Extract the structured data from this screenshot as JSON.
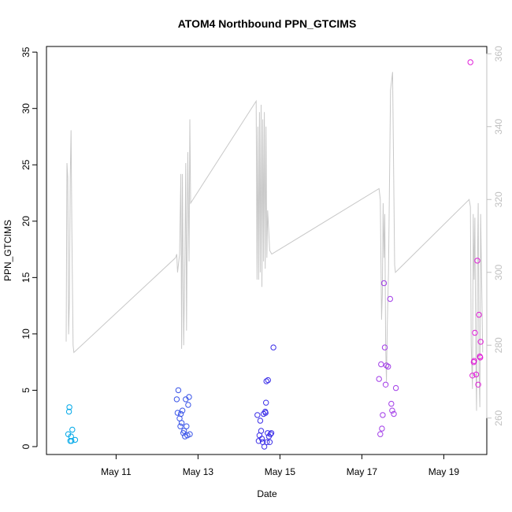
{
  "chart_data": {
    "type": "scatter",
    "title": "ATOM4 Northbound PPN_GTCIMS",
    "xlabel": "Date",
    "ylabel": "PPN_GTCIMS",
    "x_ticks": [
      {
        "value": 11,
        "label": "May 11"
      },
      {
        "value": 13,
        "label": "May 13"
      },
      {
        "value": 15,
        "label": "May 15"
      },
      {
        "value": 17,
        "label": "May 17"
      },
      {
        "value": 19,
        "label": "May 19"
      }
    ],
    "xlim": [
      9.3,
      20.05
    ],
    "ylim": [
      -0.7,
      35.5
    ],
    "y_ticks": [
      0,
      5,
      10,
      15,
      20,
      25,
      30,
      35
    ],
    "y2lim": [
      250.0,
      362.0
    ],
    "y2_ticks": [
      260,
      280,
      300,
      320,
      340,
      360
    ],
    "colors": {
      "axis": "#000000",
      "secondary_axis": "#c0c0c0",
      "secondary_line": "#c8c8c8"
    },
    "series": [
      {
        "color": "#00a8e8",
        "points": [
          [
            9.83,
            1.1
          ],
          [
            9.85,
            3.1
          ],
          [
            9.86,
            3.5
          ],
          [
            9.88,
            0.5
          ],
          [
            9.9,
            0.9
          ],
          [
            9.91,
            0.5
          ],
          [
            9.93,
            1.5
          ],
          [
            10.0,
            0.6
          ]
        ]
      },
      {
        "color": "#3a55e8",
        "points": [
          [
            12.48,
            4.2
          ],
          [
            12.5,
            3.0
          ],
          [
            12.52,
            5.0
          ],
          [
            12.55,
            2.5
          ],
          [
            12.57,
            1.8
          ],
          [
            12.58,
            2.9
          ],
          [
            12.6,
            2.1
          ],
          [
            12.62,
            3.2
          ],
          [
            12.64,
            1.2
          ],
          [
            12.66,
            1.4
          ],
          [
            12.68,
            0.9
          ],
          [
            12.7,
            4.2
          ],
          [
            12.72,
            1.8
          ],
          [
            12.74,
            1.0
          ],
          [
            12.76,
            3.7
          ],
          [
            12.78,
            4.4
          ],
          [
            12.8,
            1.1
          ]
        ]
      },
      {
        "color": "#3b2ee8",
        "points": [
          [
            14.45,
            2.8
          ],
          [
            14.48,
            0.5
          ],
          [
            14.5,
            1.0
          ],
          [
            14.52,
            2.3
          ],
          [
            14.54,
            1.4
          ],
          [
            14.56,
            0.7
          ],
          [
            14.58,
            0.4
          ],
          [
            14.6,
            2.9
          ],
          [
            14.62,
            0.0
          ],
          [
            14.64,
            3.1
          ],
          [
            14.65,
            3.0
          ],
          [
            14.66,
            3.9
          ],
          [
            14.67,
            5.8
          ],
          [
            14.68,
            0.4
          ],
          [
            14.7,
            1.2
          ],
          [
            14.71,
            5.9
          ],
          [
            14.73,
            0.9
          ],
          [
            14.75,
            0.4
          ],
          [
            14.77,
            1.1
          ],
          [
            14.79,
            1.2
          ],
          [
            14.84,
            8.8
          ]
        ]
      },
      {
        "color": "#a23de8",
        "points": [
          [
            17.42,
            6.0
          ],
          [
            17.45,
            1.1
          ],
          [
            17.47,
            7.3
          ],
          [
            17.49,
            1.6
          ],
          [
            17.51,
            2.8
          ],
          [
            17.54,
            14.5
          ],
          [
            17.56,
            8.8
          ],
          [
            17.58,
            5.5
          ],
          [
            17.6,
            7.2
          ],
          [
            17.64,
            7.1
          ],
          [
            17.69,
            13.1
          ],
          [
            17.72,
            3.8
          ],
          [
            17.74,
            3.2
          ],
          [
            17.78,
            2.9
          ],
          [
            17.83,
            5.2
          ]
        ]
      },
      {
        "color": "#e020d8",
        "points": [
          [
            19.65,
            34.1
          ],
          [
            19.7,
            6.3
          ],
          [
            19.73,
            7.5
          ],
          [
            19.74,
            7.6
          ],
          [
            19.76,
            10.1
          ],
          [
            19.79,
            6.4
          ],
          [
            19.82,
            16.5
          ],
          [
            19.84,
            5.5
          ],
          [
            19.86,
            11.7
          ],
          [
            19.88,
            8.0
          ],
          [
            19.89,
            7.9
          ],
          [
            19.9,
            9.3
          ]
        ]
      }
    ],
    "secondary_line": {
      "axis": "right",
      "points": [
        [
          9.78,
          281
        ],
        [
          9.8,
          330
        ],
        [
          9.82,
          326
        ],
        [
          9.84,
          283
        ],
        [
          9.86,
          292
        ],
        [
          9.88,
          326
        ],
        [
          9.9,
          339
        ],
        [
          9.92,
          312
        ],
        [
          9.95,
          280
        ],
        [
          9.97,
          278
        ],
        [
          12.45,
          304
        ],
        [
          12.48,
          305
        ],
        [
          12.5,
          300
        ],
        [
          12.55,
          305
        ],
        [
          12.58,
          327
        ],
        [
          12.6,
          279
        ],
        [
          12.62,
          327
        ],
        [
          12.65,
          280
        ],
        [
          12.68,
          305
        ],
        [
          12.7,
          330
        ],
        [
          12.72,
          284
        ],
        [
          12.75,
          333
        ],
        [
          12.78,
          303
        ],
        [
          12.8,
          342
        ],
        [
          12.82,
          319
        ],
        [
          14.42,
          347
        ],
        [
          14.44,
          298
        ],
        [
          14.46,
          340
        ],
        [
          14.48,
          298
        ],
        [
          14.5,
          344
        ],
        [
          14.52,
          300
        ],
        [
          14.54,
          346
        ],
        [
          14.56,
          296
        ],
        [
          14.58,
          342
        ],
        [
          14.6,
          303
        ],
        [
          14.62,
          344
        ],
        [
          14.64,
          301
        ],
        [
          14.66,
          340
        ],
        [
          14.68,
          304
        ],
        [
          14.7,
          317
        ],
        [
          14.75,
          306
        ],
        [
          14.8,
          305
        ],
        [
          17.42,
          323
        ],
        [
          17.45,
          320
        ],
        [
          17.48,
          287
        ],
        [
          17.5,
          294
        ],
        [
          17.52,
          319
        ],
        [
          17.54,
          304
        ],
        [
          17.56,
          316
        ],
        [
          17.58,
          280
        ],
        [
          17.6,
          270
        ],
        [
          17.62,
          285
        ],
        [
          17.65,
          300
        ],
        [
          17.7,
          350
        ],
        [
          17.75,
          355
        ],
        [
          17.8,
          302
        ],
        [
          17.82,
          300
        ],
        [
          19.62,
          320
        ],
        [
          19.65,
          318
        ],
        [
          19.67,
          280
        ],
        [
          19.7,
          268
        ],
        [
          19.72,
          316
        ],
        [
          19.74,
          298
        ],
        [
          19.76,
          315
        ],
        [
          19.78,
          277
        ],
        [
          19.8,
          262
        ],
        [
          19.82,
          300
        ],
        [
          19.84,
          319
        ],
        [
          19.86,
          273
        ],
        [
          19.88,
          263
        ],
        [
          19.9,
          316
        ],
        [
          19.95,
          278
        ]
      ]
    },
    "grid": false,
    "legend": "none"
  }
}
